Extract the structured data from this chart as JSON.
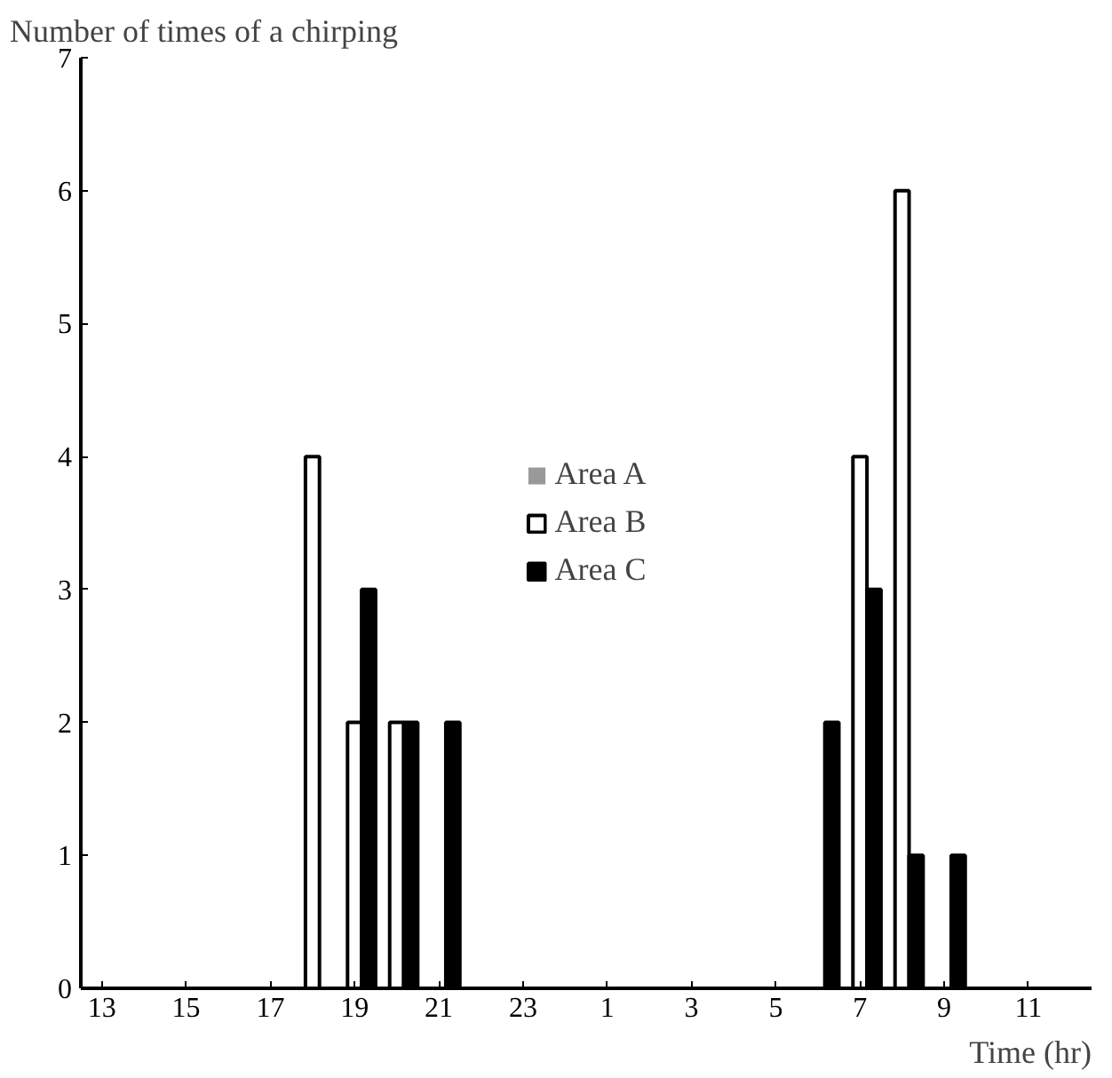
{
  "chart_data": {
    "type": "bar",
    "xlabel": "Time (hr)",
    "ylabel": "Number of times of a chirping",
    "categories": [
      "13",
      null,
      "15",
      null,
      "17",
      null,
      "19",
      null,
      "21",
      null,
      "23",
      null,
      "1",
      null,
      "3",
      null,
      "5",
      null,
      "7",
      null,
      "9",
      null,
      "11",
      null
    ],
    "series": [
      {
        "name": "Area A",
        "color": "#999999",
        "values": [
          0,
          0,
          0,
          0,
          0,
          0,
          0,
          0,
          0,
          0,
          0,
          0,
          0,
          0,
          0,
          0,
          0,
          0,
          0,
          0,
          0,
          0,
          0,
          0
        ]
      },
      {
        "name": "Area B",
        "color": "#ffffff",
        "values": [
          0,
          0,
          0,
          0,
          0,
          4,
          2,
          2,
          0,
          0,
          0,
          0,
          0,
          0,
          0,
          0,
          0,
          0,
          4,
          6,
          0,
          0,
          0,
          0
        ]
      },
      {
        "name": "Area C",
        "color": "#000000",
        "values": [
          0,
          0,
          0,
          0,
          0,
          0,
          3,
          2,
          2,
          0,
          0,
          0,
          0,
          0,
          0,
          0,
          0,
          2,
          3,
          1,
          1,
          0,
          0,
          0
        ]
      }
    ],
    "ylim": [
      0,
      7
    ],
    "yticks": [
      0,
      1,
      2,
      3,
      4,
      5,
      6,
      7
    ],
    "grid": false,
    "legend": "center"
  }
}
